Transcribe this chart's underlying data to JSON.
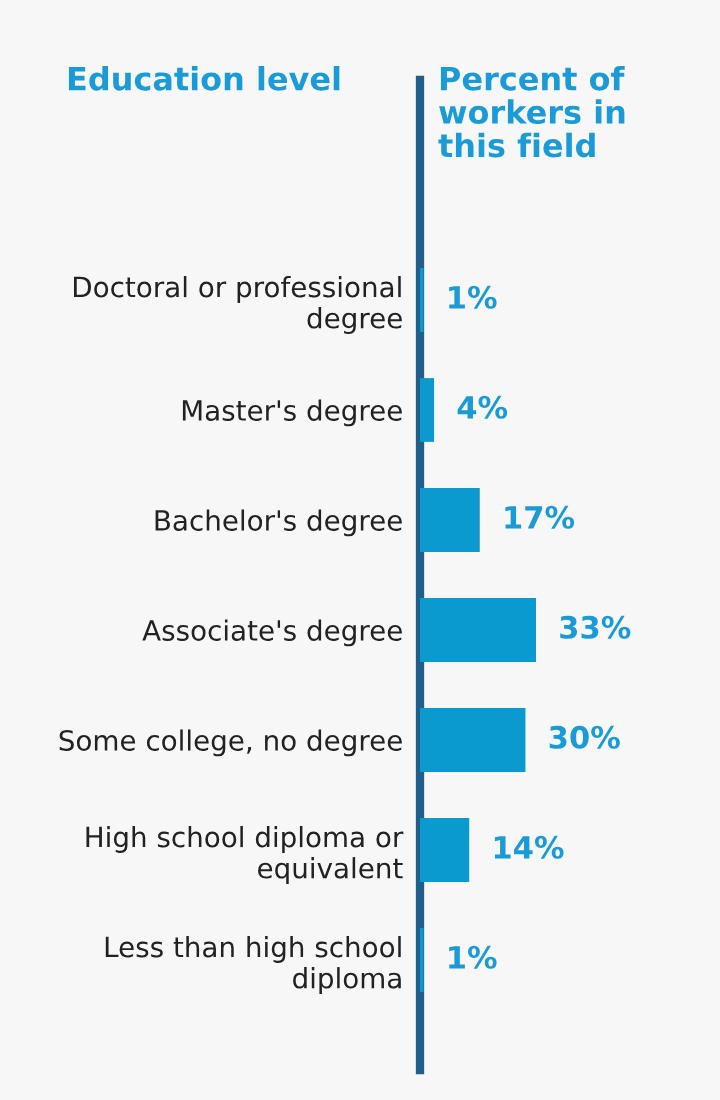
{
  "chart_data": {
    "type": "bar",
    "orientation": "horizontal",
    "ylabel": "Education level",
    "xlabel": "Percent of\nworkers in\nthis field",
    "categories": [
      "Doctoral or professional\ndegree",
      "Master's degree",
      "Bachelor's degree",
      "Associate's degree",
      "Some college, no degree",
      "High school diploma or\nequivalent",
      "Less than high school\ndiploma"
    ],
    "values": [
      1,
      4,
      17,
      33,
      30,
      14,
      1
    ],
    "value_labels": [
      "1%",
      "4%",
      "17%",
      "33%",
      "30%",
      "14%",
      "1%"
    ],
    "color": "#0b9ad0",
    "grid": false,
    "legend": false
  }
}
